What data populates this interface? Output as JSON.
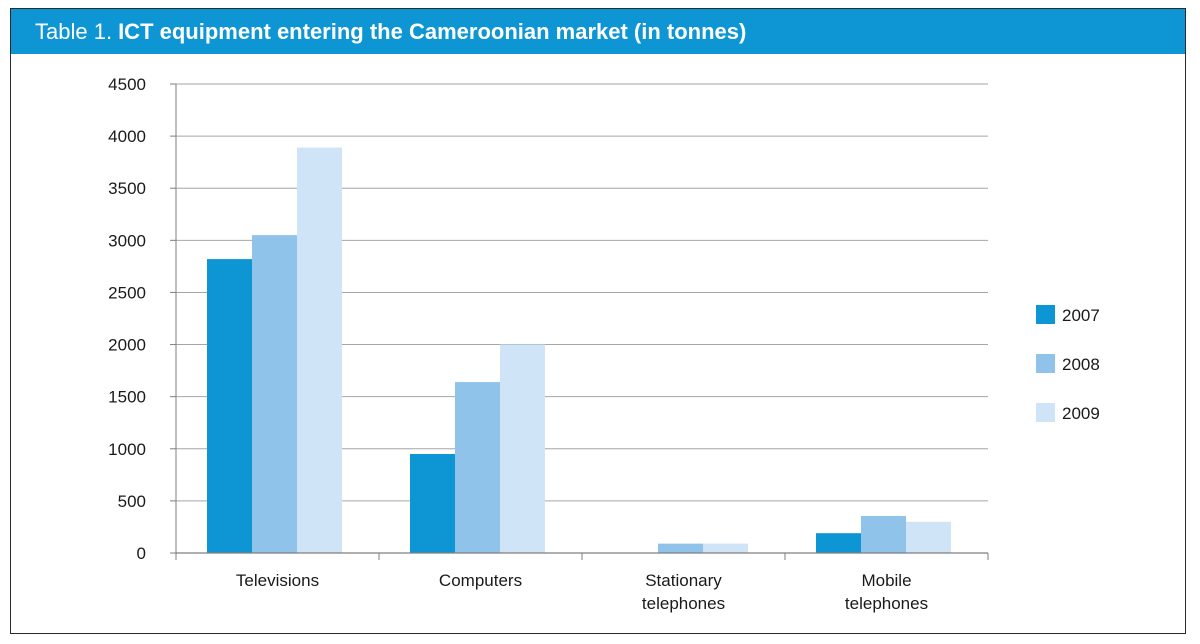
{
  "header": {
    "prefix": "Table 1.",
    "title": "ICT equipment entering the Cameroonian market (in tonnes)",
    "background": "#0e96d4"
  },
  "chart_data": {
    "type": "bar",
    "title": "ICT equipment entering the Cameroonian market (in tonnes)",
    "xlabel": "",
    "ylabel": "",
    "categories": [
      [
        "Televisions"
      ],
      [
        "Computers"
      ],
      [
        "Stationary",
        "telephones"
      ],
      [
        "Mobile",
        "telephones"
      ]
    ],
    "series": [
      {
        "name": "2007",
        "color": "#0e96d4",
        "values": [
          2820,
          950,
          0,
          190
        ]
      },
      {
        "name": "2008",
        "color": "#8fc3ea",
        "values": [
          3050,
          1640,
          90,
          355
        ]
      },
      {
        "name": "2009",
        "color": "#cfe4f7",
        "values": [
          3890,
          2000,
          90,
          300
        ]
      }
    ],
    "ylim": [
      0,
      4500
    ],
    "yticks": [
      0,
      500,
      1000,
      1500,
      2000,
      2500,
      3000,
      3500,
      4000,
      4500
    ],
    "grid": true,
    "legend_position": "right"
  }
}
